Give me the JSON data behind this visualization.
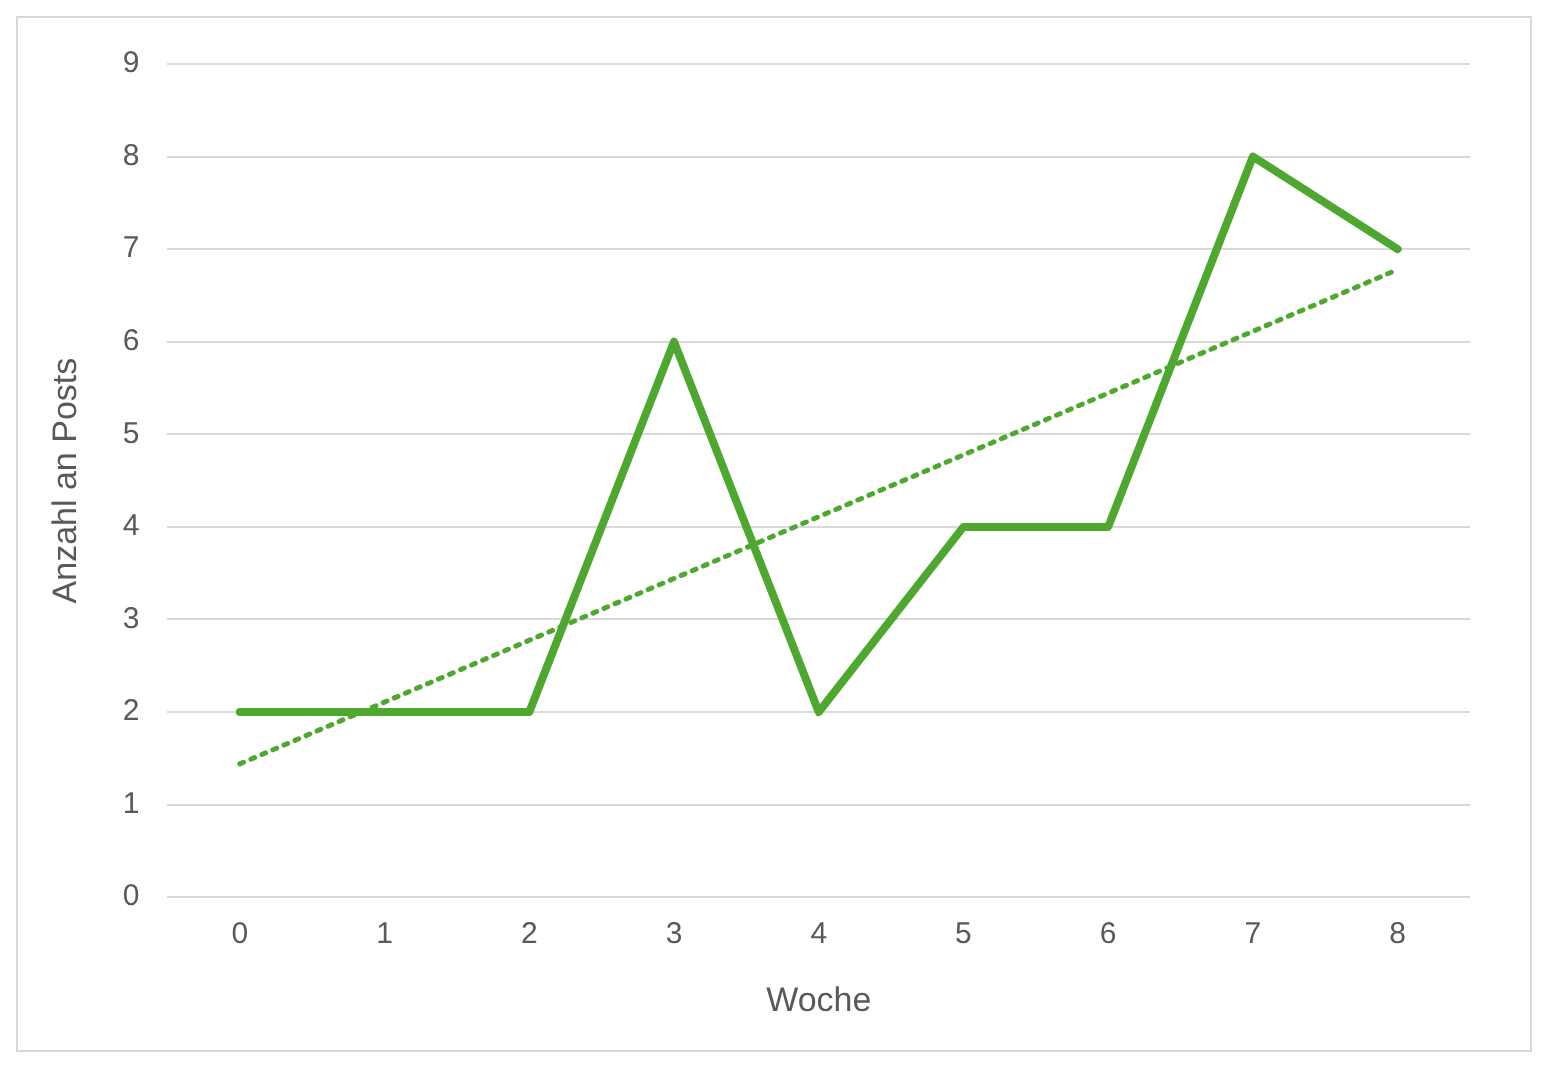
{
  "chart_data": {
    "type": "line",
    "xlabel": "Woche",
    "ylabel": "Anzahl an Posts",
    "x": [
      0,
      1,
      2,
      3,
      4,
      5,
      6,
      7,
      8
    ],
    "series": [
      {
        "color": "#4ea72e",
        "values": [
          2,
          2,
          2,
          6,
          2,
          4,
          4,
          8,
          7
        ],
        "line_style": "solid"
      },
      {
        "type": "line",
        "x": [
          0,
          8
        ],
        "color": "#4ea72e",
        "values": [
          1.44,
          6.78
        ],
        "line_style": "dotted"
      }
    ],
    "xlim": [
      -0.5,
      8.5
    ],
    "xticks": [
      0,
      1,
      2,
      3,
      4,
      5,
      6,
      7,
      8
    ],
    "ylim": [
      0,
      9
    ],
    "yticks": [
      0,
      1,
      2,
      3,
      4,
      5,
      6,
      7,
      8,
      9
    ],
    "grid": "y",
    "legend": false,
    "marker": "none"
  }
}
